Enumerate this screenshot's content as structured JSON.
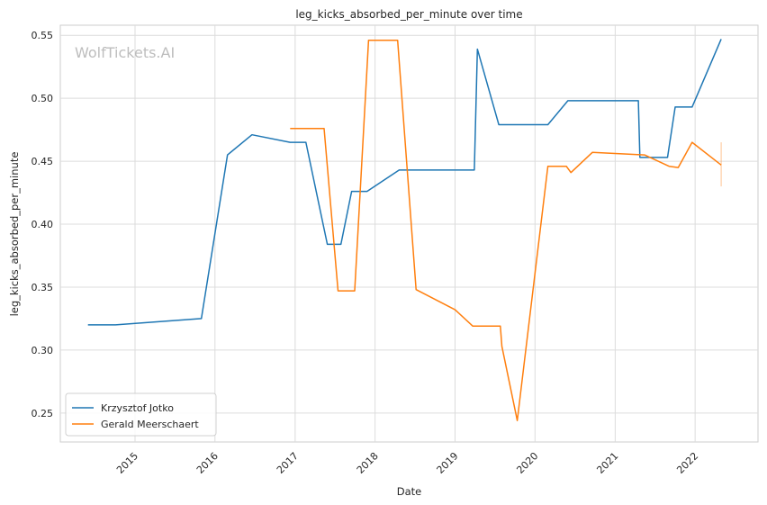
{
  "chart_data": {
    "type": "line",
    "title": "leg_kicks_absorbed_per_minute over time",
    "xlabel": "Date",
    "ylabel": "leg_kicks_absorbed_per_minute",
    "watermark": "WolfTickets.AI",
    "xlim": [
      "2014-01-25",
      "2022-10-15"
    ],
    "ylim": [
      0.227,
      0.558
    ],
    "x_ticks": [
      "2015",
      "2016",
      "2017",
      "2018",
      "2019",
      "2020",
      "2021",
      "2022"
    ],
    "y_ticks": [
      "0.25",
      "0.30",
      "0.35",
      "0.40",
      "0.45",
      "0.50",
      "0.55"
    ],
    "grid": true,
    "legend_position": "lower-left",
    "series": [
      {
        "name": "Krzysztof Jotko",
        "color": "#1f77b4",
        "points": [
          [
            "2014-05-31",
            0.32
          ],
          [
            "2014-10-04",
            0.32
          ],
          [
            "2015-10-31",
            0.325
          ],
          [
            "2016-02-27",
            0.455
          ],
          [
            "2016-06-18",
            0.471
          ],
          [
            "2016-12-09",
            0.465
          ],
          [
            "2017-02-19",
            0.465
          ],
          [
            "2017-05-28",
            0.384
          ],
          [
            "2017-07-29",
            0.384
          ],
          [
            "2017-09-16",
            0.426
          ],
          [
            "2017-11-25",
            0.426
          ],
          [
            "2018-04-21",
            0.443
          ],
          [
            "2019-03-30",
            0.443
          ],
          [
            "2019-04-13",
            0.539
          ],
          [
            "2019-07-20",
            0.479
          ],
          [
            "2020-02-29",
            0.479
          ],
          [
            "2020-05-30",
            0.498
          ],
          [
            "2021-04-17",
            0.498
          ],
          [
            "2021-04-24",
            0.453
          ],
          [
            "2021-08-28",
            0.453
          ],
          [
            "2021-10-02",
            0.493
          ],
          [
            "2021-12-18",
            0.493
          ],
          [
            "2022-04-30",
            0.547
          ]
        ]
      },
      {
        "name": "Gerald Meerschaert",
        "color": "#ff7f0e",
        "points": [
          [
            "2016-12-09",
            0.476
          ],
          [
            "2017-05-13",
            0.476
          ],
          [
            "2017-07-16",
            0.347
          ],
          [
            "2017-09-30",
            0.347
          ],
          [
            "2017-12-02",
            0.546
          ],
          [
            "2018-04-14",
            0.546
          ],
          [
            "2018-07-07",
            0.348
          ],
          [
            "2019-01-01",
            0.332
          ],
          [
            "2019-03-23",
            0.319
          ],
          [
            "2019-07-27",
            0.319
          ],
          [
            "2019-08-03",
            0.303
          ],
          [
            "2019-10-12",
            0.244
          ],
          [
            "2020-02-29",
            0.446
          ],
          [
            "2020-05-23",
            0.446
          ],
          [
            "2020-06-13",
            0.441
          ],
          [
            "2020-09-19",
            0.457
          ],
          [
            "2021-05-15",
            0.455
          ],
          [
            "2021-09-04",
            0.446
          ],
          [
            "2021-10-16",
            0.445
          ],
          [
            "2021-12-18",
            0.465
          ],
          [
            "2022-04-30",
            0.447
          ]
        ],
        "error_band": {
          "x": "2022-04-30",
          "low": 0.43,
          "high": 0.465
        }
      }
    ]
  }
}
